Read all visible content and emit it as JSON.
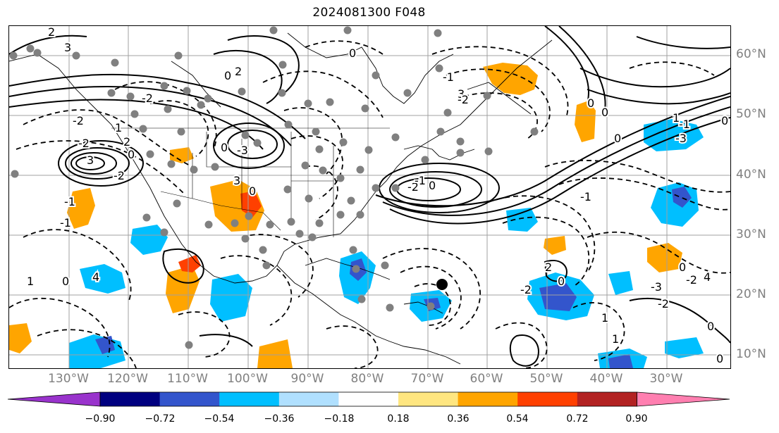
{
  "title": "2024081300 F048",
  "lat_labels": [
    "60°N",
    "50°N",
    "40°N",
    "30°N",
    "20°N",
    "10°N"
  ],
  "lon_labels": [
    "130°W",
    "120°W",
    "110°W",
    "100°W",
    "90°W",
    "80°W",
    "70°W",
    "60°W",
    "50°W",
    "40°W",
    "30°W"
  ],
  "colorbar": {
    "ticks": [
      "−0.90",
      "−0.72",
      "−0.54",
      "−0.36",
      "−0.18",
      "0.18",
      "0.36",
      "0.54",
      "0.72",
      "0.90"
    ],
    "colors": [
      "#9933cc",
      "#000080",
      "#3355cc",
      "#00bfff",
      "#b0e0ff",
      "#ffffff",
      "#ffe680",
      "#ffa500",
      "#ff4000",
      "#b22222",
      "#ff7fb0"
    ]
  },
  "contour_labels": [
    "2",
    "3",
    "-2",
    "1",
    "2",
    "0",
    "-2",
    "3",
    "-2",
    "-1",
    "-1",
    "0",
    "1",
    "4",
    "-2",
    "0",
    "2",
    "0",
    "-3",
    "3",
    "0",
    "0",
    "-1",
    "3",
    "-2",
    "-1",
    "0",
    "-2",
    "0",
    "0",
    "-3",
    "0",
    "1",
    "0",
    "-1",
    "4",
    "-3",
    "2",
    "-1",
    "0",
    "-2",
    "1",
    "0",
    "-2",
    "-2",
    "1",
    "0",
    "0"
  ]
}
